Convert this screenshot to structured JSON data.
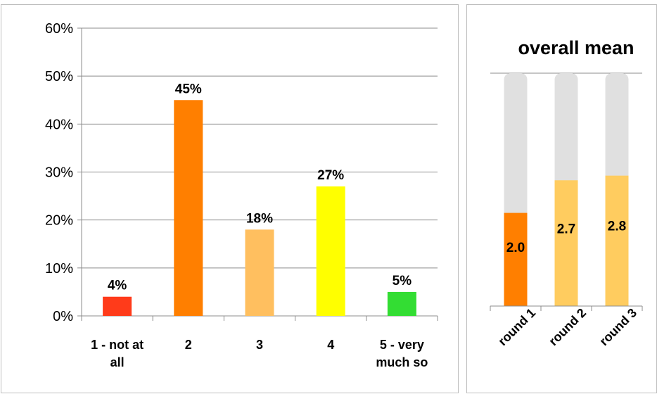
{
  "chart_data": [
    {
      "type": "bar",
      "title": "",
      "xlabel": "",
      "ylabel": "",
      "categories": [
        "1 - not at all",
        "2",
        "3",
        "4",
        "5 - very much so"
      ],
      "category_lines": [
        [
          "1 - not at",
          "all"
        ],
        [
          "2"
        ],
        [
          "3"
        ],
        [
          "4"
        ],
        [
          "5 - very",
          "much so"
        ]
      ],
      "values": [
        4,
        45,
        18,
        27,
        5
      ],
      "data_labels": [
        "4%",
        "45%",
        "18%",
        "27%",
        "5%"
      ],
      "bar_colors": [
        "#ff3b1a",
        "#ff7f00",
        "#ffbf5f",
        "#ffff00",
        "#33dd33"
      ],
      "ylim": [
        0,
        60
      ],
      "yticks": [
        0,
        10,
        20,
        30,
        40,
        50,
        60
      ],
      "ytick_labels": [
        "0%",
        "10%",
        "20%",
        "30%",
        "40%",
        "50%",
        "60%"
      ],
      "grid": true,
      "legend": "none"
    },
    {
      "type": "bar",
      "title": "overall mean",
      "categories": [
        "round 1",
        "round 2",
        "round 3"
      ],
      "values": [
        2.0,
        2.7,
        2.8
      ],
      "data_labels": [
        "2.0",
        "2.7",
        "2.8"
      ],
      "bar_colors": [
        "#ff7f00",
        "#ffcc5f",
        "#ffcc5f"
      ],
      "background_bar_color": "#e0e0e0",
      "ylim": [
        0,
        5
      ],
      "grid": false,
      "legend": "none"
    }
  ]
}
